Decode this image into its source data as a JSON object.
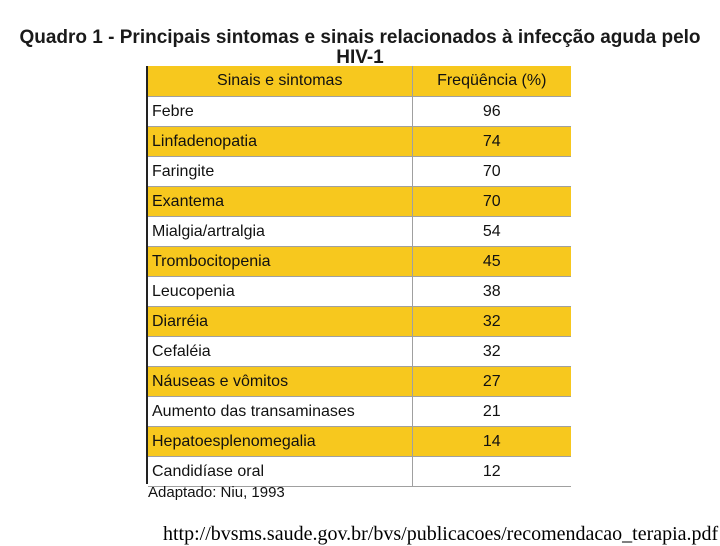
{
  "title": {
    "line1": "Quadro 1 - Principais sintomas e sinais relacionados à infecção aguda pelo",
    "line2": "HIV-1"
  },
  "table": {
    "headers": [
      "Sinais e sintomas",
      "Freqüência (%)"
    ],
    "rows": [
      {
        "name": "Febre",
        "freq": "96"
      },
      {
        "name": "Linfadenopatia",
        "freq": "74"
      },
      {
        "name": "Faringite",
        "freq": "70"
      },
      {
        "name": "Exantema",
        "freq": "70"
      },
      {
        "name": "Mialgia/artralgia",
        "freq": "54"
      },
      {
        "name": "Trombocitopenia",
        "freq": "45"
      },
      {
        "name": "Leucopenia",
        "freq": "38"
      },
      {
        "name": "Diarréia",
        "freq": "32"
      },
      {
        "name": "Cefaléia",
        "freq": "32"
      },
      {
        "name": "Náuseas e vômitos",
        "freq": "27"
      },
      {
        "name": "Aumento das transaminases",
        "freq": "21"
      },
      {
        "name": "Hepatoesplenomegalia",
        "freq": "14"
      },
      {
        "name": "Candidíase oral",
        "freq": "12"
      }
    ]
  },
  "footnote": "Adaptado: Niu, 1993",
  "source_url": "http://bvsms.saude.gov.br/bvs/publicacoes/recomendacao_terapia.pdf",
  "colors": {
    "band": "#f7c81e",
    "rule": "#a0a0a0"
  }
}
